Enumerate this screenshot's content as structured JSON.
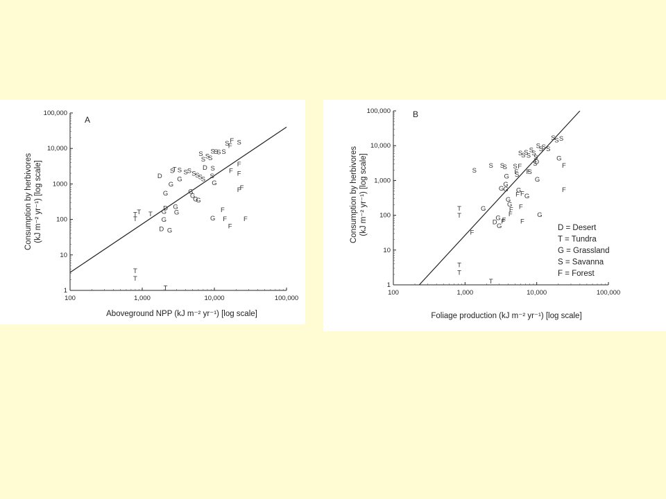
{
  "colors": {
    "slide_background": "#fffbd2",
    "panel_background": "#ffffff",
    "ink": "#222222"
  },
  "legend": [
    "D = Desert",
    "T = Tundra",
    "G = Grassland",
    "S = Savanna",
    "F = Forest"
  ],
  "chart_data": [
    {
      "type": "scatter",
      "panel_letter": "A",
      "scale": "log-log",
      "xlabel": "Aboveground NPP (kJ m⁻² yr⁻¹) [log scale]",
      "ylabel_line1": "Consumption by herbivores",
      "ylabel_line2": "(kJ m⁻² yr⁻¹) [log scale]",
      "xlim": [
        100,
        100000
      ],
      "ylim": [
        1,
        100000
      ],
      "x_ticks": [
        100,
        1000,
        10000,
        100000
      ],
      "x_tick_labels": [
        "100",
        "1,000",
        "10,000",
        "100,000"
      ],
      "y_ticks": [
        1,
        10,
        100,
        1000,
        10000,
        100000
      ],
      "y_tick_labels": [
        "1",
        "10",
        "100",
        "1000",
        "10,000",
        "100,000"
      ],
      "grid": false,
      "fit_line": [
        [
          100,
          3.2
        ],
        [
          100000,
          40000
        ]
      ],
      "points": [
        {
          "label": "D",
          "x": 1750,
          "y": 1700
        },
        {
          "label": "D",
          "x": 2100,
          "y": 210
        },
        {
          "label": "D",
          "x": 1850,
          "y": 55
        },
        {
          "label": "D",
          "x": 7400,
          "y": 2900
        },
        {
          "label": "T",
          "x": 800,
          "y": 140
        },
        {
          "label": "T",
          "x": 900,
          "y": 165
        },
        {
          "label": "T",
          "x": 800,
          "y": 105
        },
        {
          "label": "T",
          "x": 1300,
          "y": 145
        },
        {
          "label": "T",
          "x": 800,
          "y": 3.6
        },
        {
          "label": "T",
          "x": 800,
          "y": 2.2
        },
        {
          "label": "T",
          "x": 2100,
          "y": 1.2
        },
        {
          "label": "T",
          "x": 2800,
          "y": 2600
        },
        {
          "label": "G",
          "x": 2500,
          "y": 1000
        },
        {
          "label": "G",
          "x": 2100,
          "y": 550
        },
        {
          "label": "G",
          "x": 3300,
          "y": 1400
        },
        {
          "label": "G",
          "x": 2000,
          "y": 170
        },
        {
          "label": "G",
          "x": 2000,
          "y": 100
        },
        {
          "label": "G",
          "x": 2400,
          "y": 50
        },
        {
          "label": "G",
          "x": 2900,
          "y": 230
        },
        {
          "label": "G",
          "x": 3000,
          "y": 160
        },
        {
          "label": "G",
          "x": 4700,
          "y": 620
        },
        {
          "label": "G",
          "x": 5000,
          "y": 470
        },
        {
          "label": "G",
          "x": 5500,
          "y": 380
        },
        {
          "label": "G",
          "x": 6000,
          "y": 350
        },
        {
          "label": "G",
          "x": 10000,
          "y": 1100
        },
        {
          "label": "G",
          "x": 9500,
          "y": 110
        },
        {
          "label": "S",
          "x": 2600,
          "y": 2400
        },
        {
          "label": "S",
          "x": 3300,
          "y": 2500
        },
        {
          "label": "S",
          "x": 4000,
          "y": 2200
        },
        {
          "label": "S",
          "x": 4500,
          "y": 2400
        },
        {
          "label": "S",
          "x": 5200,
          "y": 2000
        },
        {
          "label": "S",
          "x": 5800,
          "y": 1800
        },
        {
          "label": "S",
          "x": 6400,
          "y": 1600
        },
        {
          "label": "S",
          "x": 7000,
          "y": 1400
        },
        {
          "label": "S",
          "x": 6500,
          "y": 7200
        },
        {
          "label": "S",
          "x": 7000,
          "y": 5000
        },
        {
          "label": "S",
          "x": 8000,
          "y": 6200
        },
        {
          "label": "S",
          "x": 8800,
          "y": 5500
        },
        {
          "label": "S",
          "x": 9500,
          "y": 8500
        },
        {
          "label": "S",
          "x": 10500,
          "y": 8300
        },
        {
          "label": "S",
          "x": 11500,
          "y": 8000
        },
        {
          "label": "S",
          "x": 13500,
          "y": 8200
        },
        {
          "label": "S",
          "x": 9500,
          "y": 2800
        },
        {
          "label": "S",
          "x": 9300,
          "y": 1700
        },
        {
          "label": "S",
          "x": 15000,
          "y": 14000
        },
        {
          "label": "S",
          "x": 22000,
          "y": 15000
        },
        {
          "label": "F",
          "x": 17500,
          "y": 17000
        },
        {
          "label": "F",
          "x": 16500,
          "y": 12000
        },
        {
          "label": "F",
          "x": 22000,
          "y": 3700
        },
        {
          "label": "F",
          "x": 17000,
          "y": 2400
        },
        {
          "label": "F",
          "x": 22000,
          "y": 2000
        },
        {
          "label": "F",
          "x": 22000,
          "y": 700
        },
        {
          "label": "F",
          "x": 24000,
          "y": 800
        },
        {
          "label": "F",
          "x": 13000,
          "y": 190
        },
        {
          "label": "F",
          "x": 14000,
          "y": 105
        },
        {
          "label": "F",
          "x": 16500,
          "y": 65
        },
        {
          "label": "F",
          "x": 27000,
          "y": 105
        }
      ]
    },
    {
      "type": "scatter",
      "panel_letter": "B",
      "scale": "log-log",
      "xlabel": "Foliage production (kJ m⁻² yr⁻¹) [log scale]",
      "ylabel_line1": "Consumption by herbivores",
      "ylabel_line2": "(kJ m⁻² yr⁻¹) [log scale]",
      "xlim": [
        100,
        100000
      ],
      "ylim": [
        1,
        100000
      ],
      "x_ticks": [
        100,
        1000,
        10000,
        100000
      ],
      "x_tick_labels": [
        "100",
        "1,000",
        "10,000",
        "100,000"
      ],
      "y_ticks": [
        1,
        10,
        100,
        1000,
        10000,
        100000
      ],
      "y_tick_labels": [
        "1",
        "10",
        "100",
        "1,000",
        "10,000",
        "100,000"
      ],
      "grid": false,
      "fit_line": [
        [
          230,
          1
        ],
        [
          40000,
          100000
        ]
      ],
      "points": [
        {
          "label": "S",
          "x": 1350,
          "y": 2000
        },
        {
          "label": "S",
          "x": 2300,
          "y": 2700
        },
        {
          "label": "S",
          "x": 3300,
          "y": 2700
        },
        {
          "label": "S",
          "x": 3600,
          "y": 2500
        },
        {
          "label": "S",
          "x": 5000,
          "y": 2600
        },
        {
          "label": "S",
          "x": 5900,
          "y": 6300
        },
        {
          "label": "S",
          "x": 6500,
          "y": 5400
        },
        {
          "label": "S",
          "x": 7100,
          "y": 6500
        },
        {
          "label": "S",
          "x": 7700,
          "y": 5300
        },
        {
          "label": "S",
          "x": 8400,
          "y": 7600
        },
        {
          "label": "S",
          "x": 9100,
          "y": 6200
        },
        {
          "label": "S",
          "x": 9700,
          "y": 4700
        },
        {
          "label": "S",
          "x": 10500,
          "y": 10000
        },
        {
          "label": "S",
          "x": 11500,
          "y": 8300
        },
        {
          "label": "S",
          "x": 12500,
          "y": 9500
        },
        {
          "label": "S",
          "x": 14500,
          "y": 8300
        },
        {
          "label": "S",
          "x": 17000,
          "y": 17000
        },
        {
          "label": "S",
          "x": 19000,
          "y": 14500
        },
        {
          "label": "S",
          "x": 22000,
          "y": 16500
        },
        {
          "label": "S",
          "x": 9500,
          "y": 3100
        },
        {
          "label": "S",
          "x": 8000,
          "y": 1800
        },
        {
          "label": "S",
          "x": 5300,
          "y": 1500
        },
        {
          "label": "G",
          "x": 3800,
          "y": 1350
        },
        {
          "label": "G",
          "x": 3700,
          "y": 800
        },
        {
          "label": "G",
          "x": 3200,
          "y": 600
        },
        {
          "label": "G",
          "x": 3700,
          "y": 580
        },
        {
          "label": "G",
          "x": 5600,
          "y": 530
        },
        {
          "label": "G",
          "x": 7300,
          "y": 360
        },
        {
          "label": "G",
          "x": 4000,
          "y": 290
        },
        {
          "label": "G",
          "x": 4200,
          "y": 210
        },
        {
          "label": "G",
          "x": 2900,
          "y": 85
        },
        {
          "label": "G",
          "x": 1800,
          "y": 160
        },
        {
          "label": "G",
          "x": 3000,
          "y": 50
        },
        {
          "label": "G",
          "x": 10200,
          "y": 1100
        },
        {
          "label": "G",
          "x": 11000,
          "y": 105
        },
        {
          "label": "G",
          "x": 20500,
          "y": 4400
        },
        {
          "label": "D",
          "x": 2600,
          "y": 65
        },
        {
          "label": "D",
          "x": 10000,
          "y": 3500
        },
        {
          "label": "F",
          "x": 5800,
          "y": 2600
        },
        {
          "label": "F",
          "x": 5200,
          "y": 1800
        },
        {
          "label": "F",
          "x": 7600,
          "y": 1800
        },
        {
          "label": "F",
          "x": 6300,
          "y": 430
        },
        {
          "label": "F",
          "x": 5400,
          "y": 410
        },
        {
          "label": "F",
          "x": 6000,
          "y": 180
        },
        {
          "label": "F",
          "x": 4400,
          "y": 150
        },
        {
          "label": "F",
          "x": 4300,
          "y": 110
        },
        {
          "label": "F",
          "x": 3500,
          "y": 75
        },
        {
          "label": "F",
          "x": 3400,
          "y": 68
        },
        {
          "label": "F",
          "x": 6300,
          "y": 68
        },
        {
          "label": "F",
          "x": 1250,
          "y": 33
        },
        {
          "label": "F",
          "x": 24000,
          "y": 2700
        },
        {
          "label": "F",
          "x": 24000,
          "y": 550
        },
        {
          "label": "T",
          "x": 830,
          "y": 160
        },
        {
          "label": "T",
          "x": 830,
          "y": 100
        },
        {
          "label": "T",
          "x": 830,
          "y": 3.8
        },
        {
          "label": "T",
          "x": 830,
          "y": 2.3
        },
        {
          "label": "T",
          "x": 2300,
          "y": 1.3
        }
      ]
    }
  ]
}
